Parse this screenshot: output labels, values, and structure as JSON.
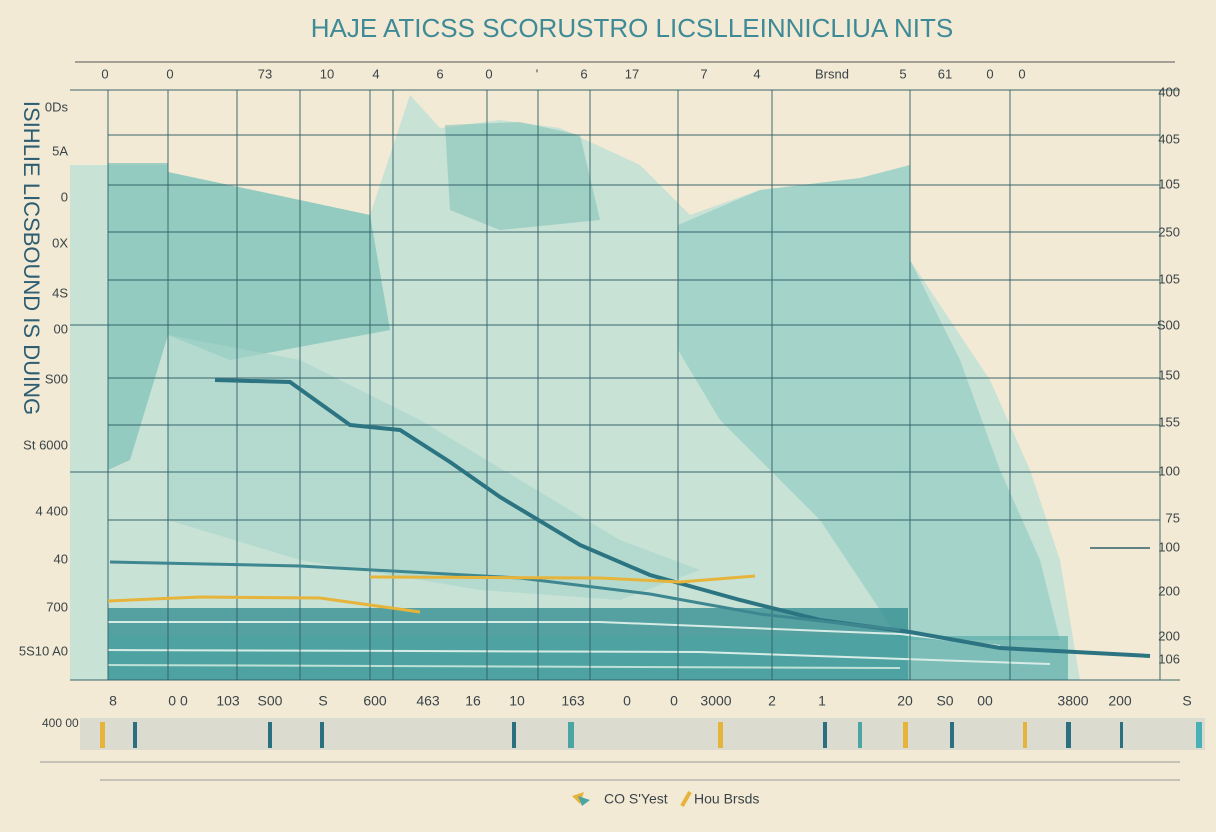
{
  "title": "HAJE ATICSS SCORUSTRO LICSLLEINNICLIUA NITS",
  "y_axis_label": "ISIHLIE LICSBOUND IS DUING",
  "top_labels": [
    "0",
    "0",
    "73",
    "10",
    "4",
    "6",
    "0",
    "'",
    "6",
    "17",
    "7",
    "4",
    "Brsnd",
    "5",
    "61",
    "0",
    "0"
  ],
  "left_labels": [
    "0Ds",
    "5A",
    "0",
    "0X",
    "4S",
    "00",
    "S00",
    "St 6000",
    "4 400",
    "40",
    "700",
    "5S10 A0"
  ],
  "right_labels": [
    "400",
    "405",
    "105",
    "250",
    "105",
    "S00",
    "150",
    "155",
    "100",
    "75",
    "100",
    "200",
    "200",
    "106"
  ],
  "bottom_labels": [
    "8",
    "0 0",
    "103",
    "S00",
    "S",
    "600",
    "463",
    "16",
    "10",
    "163",
    "0",
    "0",
    "3000",
    "2",
    "1",
    "20",
    "S0",
    "00",
    "3800",
    "200",
    "S"
  ],
  "strip_label": "400 00",
  "legend": [
    "CO S'Yest",
    "Hou Brsds"
  ]
}
